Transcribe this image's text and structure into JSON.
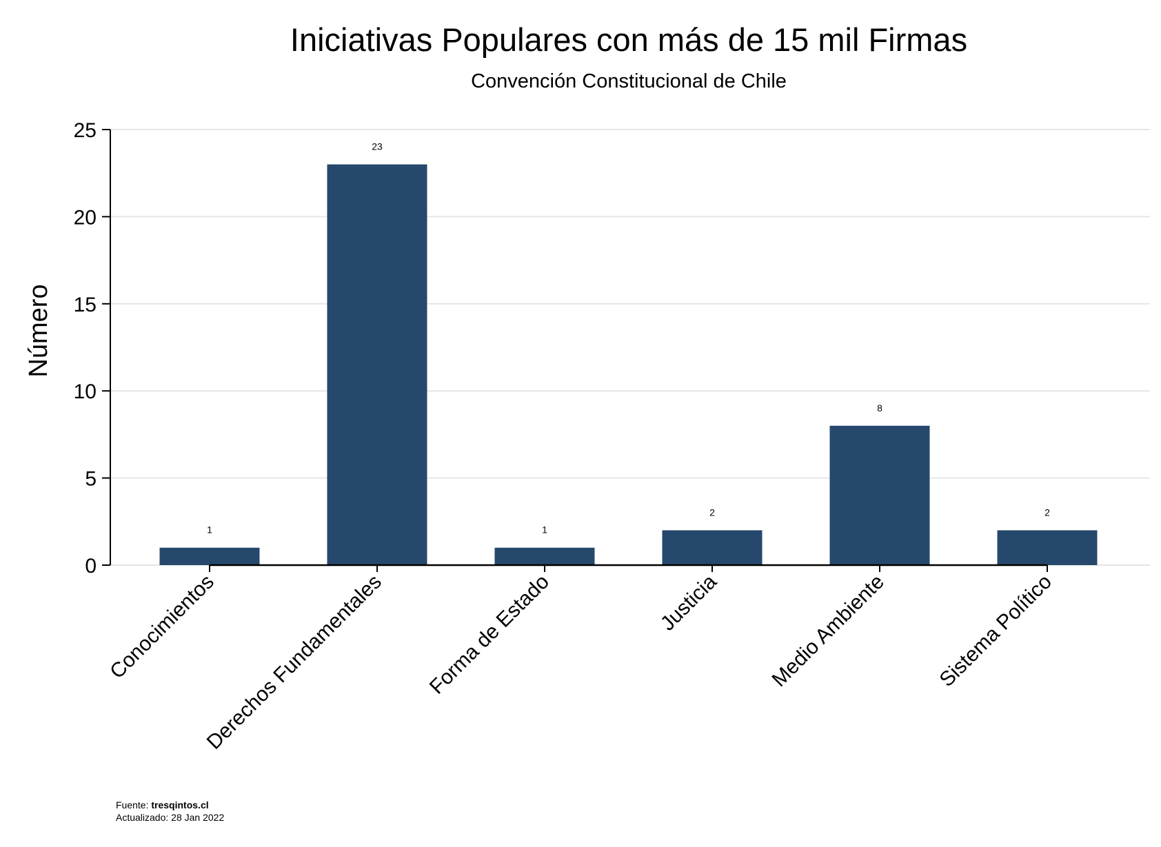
{
  "chart_data": {
    "type": "bar",
    "title": "Iniciativas Populares con más de 15 mil Firmas",
    "subtitle": "Convención Constitucional de Chile",
    "ylabel": "Número",
    "xlabel": "",
    "categories": [
      "Conocimientos",
      "Derechos Fundamentales",
      "Forma de Estado",
      "Justicia",
      "Medio Ambiente",
      "Sistema Político"
    ],
    "values": [
      1,
      23,
      1,
      2,
      8,
      2
    ],
    "data_labels": [
      "1",
      "23",
      "1",
      "2",
      "8",
      "2"
    ],
    "ylim": [
      0,
      25
    ],
    "yticks": [
      0,
      5,
      10,
      15,
      20,
      25
    ],
    "ytick_labels": [
      "0",
      "5",
      "10",
      "15",
      "20",
      "25"
    ],
    "grid": true,
    "legend": "none",
    "bar_color": "#26486c",
    "grid_color": "#e6e6e6"
  },
  "footer": {
    "source_label": "Fuente: ",
    "source_name": "tresqintos.cl",
    "updated": "Actualizado: 28 Jan 2022"
  }
}
